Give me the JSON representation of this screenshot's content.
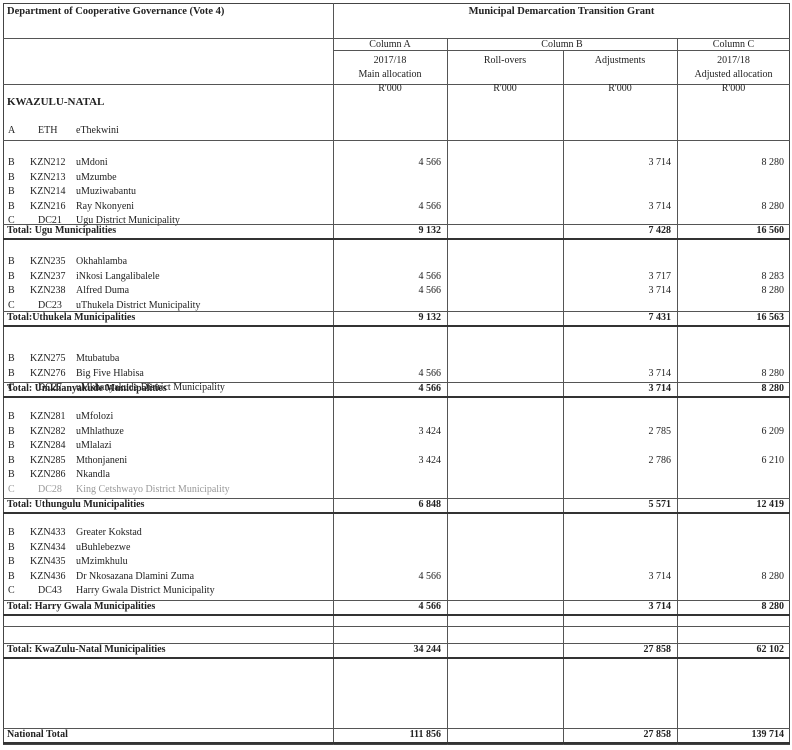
{
  "header": {
    "department": "Department of Cooperative Governance (Vote 4)",
    "grant_title": "Municipal Demarcation Transition Grant",
    "col_a_label": "Column A",
    "col_b_label": "Column B",
    "col_c_label": "Column C",
    "col_a_year": "2017/18",
    "col_a_desc": "Main allocation",
    "rollovers": "Roll-overs",
    "adjustments": "Adjustments",
    "col_c_year": "2017/18",
    "col_c_desc": "Adjusted allocation",
    "unit_a": "R'000",
    "unit_ro": "R'000",
    "unit_adj": "R'000",
    "unit_c": "R'000"
  },
  "province": "KWAZULU-NATAL",
  "eth": {
    "type": "A",
    "code": "ETH",
    "name": "eThekwini"
  },
  "groups": [
    {
      "rows": [
        {
          "type": "B",
          "code": "KZN212",
          "name": "uMdoni",
          "a": "4 566",
          "adj": "3 714",
          "c": "8 280"
        },
        {
          "type": "B",
          "code": "KZN213",
          "name": "uMzumbe",
          "a": "",
          "adj": "",
          "c": ""
        },
        {
          "type": "B",
          "code": "KZN214",
          "name": "uMuziwabantu",
          "a": "",
          "adj": "",
          "c": ""
        },
        {
          "type": "B",
          "code": "KZN216",
          "name": "Ray Nkonyeni",
          "a": "4 566",
          "adj": "3 714",
          "c": "8 280"
        },
        {
          "type": "C",
          "code": "DC21",
          "name": "Ugu District Municipality",
          "a": "",
          "adj": "",
          "c": ""
        }
      ],
      "total": {
        "label": "Total: Ugu Municipalities",
        "a": "9 132",
        "adj": "7 428",
        "c": "16 560"
      }
    },
    {
      "rows": [
        {
          "type": "B",
          "code": "KZN235",
          "name": "Okhahlamba",
          "a": "",
          "adj": "",
          "c": ""
        },
        {
          "type": "B",
          "code": "KZN237",
          "name": "iNkosi Langalibalele",
          "a": "4 566",
          "adj": "3 717",
          "c": "8 283"
        },
        {
          "type": "B",
          "code": "KZN238",
          "name": "Alfred Duma",
          "a": "4 566",
          "adj": "3 714",
          "c": "8 280"
        },
        {
          "type": "C",
          "code": "DC23",
          "name": "uThukela District Municipality",
          "a": "",
          "adj": "",
          "c": ""
        }
      ],
      "total": {
        "label": "Total:Uthukela Municipalities",
        "a": "9 132",
        "adj": "7 431",
        "c": "16 563"
      }
    },
    {
      "rows": [
        {
          "type": "B",
          "code": "KZN275",
          "name": "Mtubatuba",
          "a": "",
          "adj": "",
          "c": ""
        },
        {
          "type": "B",
          "code": "KZN276",
          "name": "Big Five Hlabisa",
          "a": "4 566",
          "adj": "3 714",
          "c": "8 280"
        },
        {
          "type": "C",
          "code": "DC27",
          "name": "uMkhanyakude District Municipality",
          "a": "",
          "adj": "",
          "c": ""
        }
      ],
      "total": {
        "label": "Total: Umkhanyakude Municipalities",
        "a": "4 566",
        "adj": "3 714",
        "c": "8 280"
      }
    },
    {
      "rows": [
        {
          "type": "B",
          "code": "KZN281",
          "name": "uMfolozi",
          "a": "",
          "adj": "",
          "c": ""
        },
        {
          "type": "B",
          "code": "KZN282",
          "name": "uMhlathuze",
          "a": "3 424",
          "adj": "2 785",
          "c": "6 209"
        },
        {
          "type": "B",
          "code": "KZN284",
          "name": "uMlalazi",
          "a": "",
          "adj": "",
          "c": ""
        },
        {
          "type": "B",
          "code": "KZN285",
          "name": "Mthonjaneni",
          "a": "3 424",
          "adj": "2 786",
          "c": "6 210"
        },
        {
          "type": "B",
          "code": "KZN286",
          "name": "Nkandla",
          "a": "",
          "adj": "",
          "c": ""
        },
        {
          "type": "C",
          "code": "DC28",
          "name": "King Cetshwayo District Municipality",
          "a": "",
          "adj": "",
          "c": ""
        }
      ],
      "total": {
        "label": "Total: Uthungulu Municipalities",
        "a": "6 848",
        "adj": "5 571",
        "c": "12 419"
      }
    },
    {
      "rows": [
        {
          "type": "B",
          "code": "KZN433",
          "name": "Greater Kokstad",
          "a": "",
          "adj": "",
          "c": ""
        },
        {
          "type": "B",
          "code": "KZN434",
          "name": "uBuhlebezwe",
          "a": "",
          "adj": "",
          "c": ""
        },
        {
          "type": "B",
          "code": "KZN435",
          "name": "uMzimkhulu",
          "a": "",
          "adj": "",
          "c": ""
        },
        {
          "type": "B",
          "code": "KZN436",
          "name": "Dr Nkosazana Dlamini Zuma",
          "a": "4 566",
          "adj": "3 714",
          "c": "8 280"
        },
        {
          "type": "C",
          "code": "DC43",
          "name": "Harry Gwala District Municipality",
          "a": "",
          "adj": "",
          "c": ""
        }
      ],
      "total": {
        "label": "Total: Harry Gwala Municipalities",
        "a": "4 566",
        "adj": "3 714",
        "c": "8 280"
      }
    }
  ],
  "kzn_total": {
    "label": "Total: KwaZulu-Natal  Municipalities",
    "a": "34 244",
    "adj": "27 858",
    "c": "62 102"
  },
  "national_total": {
    "label": "National Total",
    "a": "111 856",
    "adj": "27 858",
    "c": "139 714"
  }
}
